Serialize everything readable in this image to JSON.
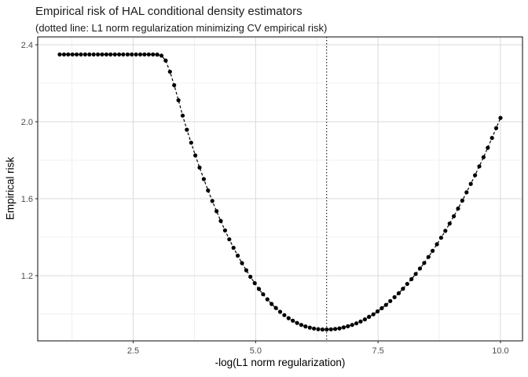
{
  "chart_data": {
    "type": "scatter",
    "title": "Empirical risk of HAL conditional density estimators",
    "subtitle": "(dotted line: L1 norm regularization minimizing CV empirical risk)",
    "xlabel": "-log(L1 norm regularization)",
    "ylabel": "Empirical risk",
    "xlim": [
      0.55,
      10.45
    ],
    "ylim": [
      0.861,
      2.441
    ],
    "x_ticks": {
      "values": [
        2.5,
        5.0,
        7.5,
        10.0
      ],
      "labels": [
        "2.5",
        "5.0",
        "7.5",
        "10.0"
      ]
    },
    "y_ticks": {
      "values": [
        1.2,
        1.6,
        2.0,
        2.4
      ],
      "labels": [
        "1.2",
        "1.6",
        "2.0",
        "2.4"
      ]
    },
    "x_minor": [
      1.25,
      3.75,
      6.25,
      8.75
    ],
    "y_minor": [
      1.0,
      1.4,
      1.8,
      2.2
    ],
    "vline_x": 6.45,
    "vline_style": "dotted",
    "line_style": "dashed",
    "grid": true,
    "legend": "none",
    "points": [
      [
        1.0,
        2.35
      ],
      [
        1.087,
        2.35
      ],
      [
        1.173,
        2.35
      ],
      [
        1.26,
        2.35
      ],
      [
        1.346,
        2.35
      ],
      [
        1.433,
        2.35
      ],
      [
        1.519,
        2.35
      ],
      [
        1.606,
        2.35
      ],
      [
        1.692,
        2.35
      ],
      [
        1.779,
        2.35
      ],
      [
        1.865,
        2.35
      ],
      [
        1.952,
        2.35
      ],
      [
        2.038,
        2.35
      ],
      [
        2.125,
        2.35
      ],
      [
        2.212,
        2.35
      ],
      [
        2.298,
        2.35
      ],
      [
        2.385,
        2.35
      ],
      [
        2.471,
        2.35
      ],
      [
        2.558,
        2.35
      ],
      [
        2.644,
        2.35
      ],
      [
        2.731,
        2.35
      ],
      [
        2.817,
        2.35
      ],
      [
        2.904,
        2.35
      ],
      [
        2.99,
        2.349
      ],
      [
        3.077,
        2.344
      ],
      [
        3.163,
        2.318
      ],
      [
        3.25,
        2.26
      ],
      [
        3.337,
        2.19
      ],
      [
        3.423,
        2.112
      ],
      [
        3.51,
        2.032
      ],
      [
        3.596,
        1.959
      ],
      [
        3.683,
        1.891
      ],
      [
        3.769,
        1.825
      ],
      [
        3.856,
        1.762
      ],
      [
        3.942,
        1.702
      ],
      [
        4.029,
        1.643
      ],
      [
        4.115,
        1.588
      ],
      [
        4.202,
        1.535
      ],
      [
        4.288,
        1.484
      ],
      [
        4.375,
        1.435
      ],
      [
        4.462,
        1.389
      ],
      [
        4.548,
        1.345
      ],
      [
        4.635,
        1.304
      ],
      [
        4.721,
        1.265
      ],
      [
        4.808,
        1.228
      ],
      [
        4.894,
        1.194
      ],
      [
        4.981,
        1.161
      ],
      [
        5.067,
        1.131
      ],
      [
        5.154,
        1.103
      ],
      [
        5.24,
        1.077
      ],
      [
        5.327,
        1.053
      ],
      [
        5.413,
        1.032
      ],
      [
        5.5,
        1.012
      ],
      [
        5.587,
        0.995
      ],
      [
        5.673,
        0.979
      ],
      [
        5.76,
        0.966
      ],
      [
        5.846,
        0.954
      ],
      [
        5.933,
        0.944
      ],
      [
        6.019,
        0.936
      ],
      [
        6.106,
        0.93
      ],
      [
        6.192,
        0.925
      ],
      [
        6.279,
        0.922
      ],
      [
        6.365,
        0.92
      ],
      [
        6.452,
        0.92
      ],
      [
        6.538,
        0.921
      ],
      [
        6.625,
        0.923
      ],
      [
        6.712,
        0.926
      ],
      [
        6.798,
        0.931
      ],
      [
        6.885,
        0.937
      ],
      [
        6.971,
        0.944
      ],
      [
        7.058,
        0.952
      ],
      [
        7.144,
        0.962
      ],
      [
        7.231,
        0.973
      ],
      [
        7.317,
        0.986
      ],
      [
        7.404,
        0.999
      ],
      [
        7.49,
        1.014
      ],
      [
        7.577,
        1.031
      ],
      [
        7.663,
        1.048
      ],
      [
        7.75,
        1.068
      ],
      [
        7.837,
        1.088
      ],
      [
        7.923,
        1.109
      ],
      [
        8.01,
        1.132
      ],
      [
        8.096,
        1.157
      ],
      [
        8.183,
        1.182
      ],
      [
        8.269,
        1.209
      ],
      [
        8.356,
        1.237
      ],
      [
        8.442,
        1.266
      ],
      [
        8.529,
        1.297
      ],
      [
        8.615,
        1.329
      ],
      [
        8.702,
        1.363
      ],
      [
        8.788,
        1.397
      ],
      [
        8.875,
        1.433
      ],
      [
        8.962,
        1.471
      ],
      [
        9.048,
        1.509
      ],
      [
        9.135,
        1.549
      ],
      [
        9.221,
        1.59
      ],
      [
        9.308,
        1.633
      ],
      [
        9.394,
        1.677
      ],
      [
        9.481,
        1.722
      ],
      [
        9.567,
        1.768
      ],
      [
        9.654,
        1.816
      ],
      [
        9.74,
        1.865
      ],
      [
        9.827,
        1.916
      ],
      [
        9.913,
        1.967
      ],
      [
        10.0,
        2.02
      ]
    ]
  },
  "colors": {
    "background": "#FFFFFF",
    "point": "#000000",
    "line": "#000000",
    "vline": "#000000",
    "grid_major": "#D9D9D9",
    "grid_minor": "#ECECEC",
    "panel_border": "#333333",
    "tick": "#333333",
    "tick_label": "#4D4D4D",
    "text": "#1A1A1A"
  }
}
